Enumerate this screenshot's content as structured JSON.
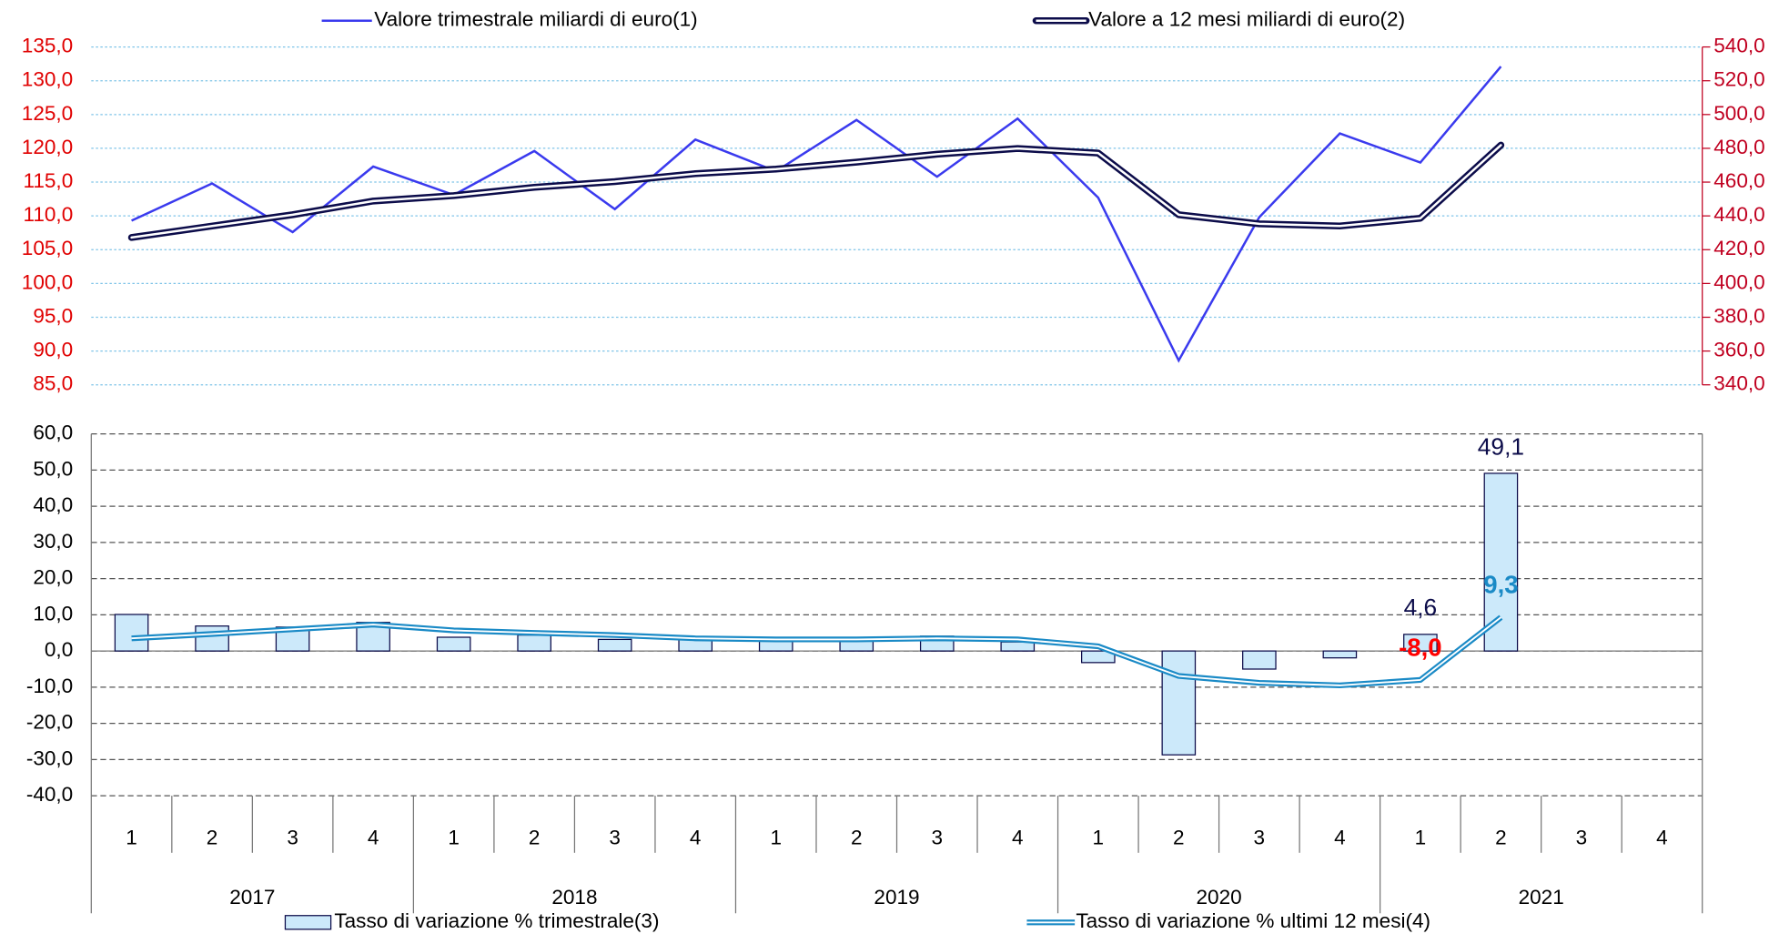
{
  "chart_data": [
    {
      "type": "line",
      "legend": "top",
      "grid": true,
      "series": [
        {
          "name": "Valore trimestrale miliardi di euro(1)",
          "color": "#3a3aee",
          "values": [
            109.3,
            114.8,
            107.6,
            117.3,
            113.1,
            119.6,
            111.0,
            121.3,
            116.6,
            124.2,
            115.8,
            124.4,
            112.7,
            88.6,
            109.8,
            122.2,
            117.9,
            132.1,
            null,
            null
          ]
        },
        {
          "name": "Valore a 12 mesi miliardi di euro(2)",
          "color": "#0c0c4a",
          "axis": "y2",
          "values": [
            427.2,
            434.0,
            440.7,
            448.8,
            452.0,
            456.9,
            460.3,
            465.0,
            467.7,
            471.8,
            476.5,
            479.9,
            477.2,
            440.7,
            435.3,
            434.0,
            438.6,
            481.9,
            null,
            null
          ]
        }
      ],
      "ylim": [
        85,
        135
      ],
      "yticks": [
        {
          "value": 85,
          "label": "85,0"
        },
        {
          "value": 90,
          "label": "90,0"
        },
        {
          "value": 95,
          "label": "95,0"
        },
        {
          "value": 100,
          "label": "100,0"
        },
        {
          "value": 105,
          "label": "105,0"
        },
        {
          "value": 110,
          "label": "110,0"
        },
        {
          "value": 115,
          "label": "115,0"
        },
        {
          "value": 120,
          "label": "120,0"
        },
        {
          "value": 125,
          "label": "125,0"
        },
        {
          "value": 130,
          "label": "130,0"
        },
        {
          "value": 135,
          "label": "135,0"
        }
      ],
      "y2lim": [
        340,
        540
      ],
      "y2ticks": [
        {
          "value": 340,
          "label": "340,0"
        },
        {
          "value": 360,
          "label": "360,0"
        },
        {
          "value": 380,
          "label": "380,0"
        },
        {
          "value": 400,
          "label": "400,0"
        },
        {
          "value": 420,
          "label": "420,0"
        },
        {
          "value": 440,
          "label": "440,0"
        },
        {
          "value": 460,
          "label": "460,0"
        },
        {
          "value": 480,
          "label": "480,0"
        },
        {
          "value": 500,
          "label": "500,0"
        },
        {
          "value": 520,
          "label": "520,0"
        },
        {
          "value": 540,
          "label": "540,0"
        }
      ]
    },
    {
      "type": "bar_line",
      "legend": "bottom",
      "grid": true,
      "categories": [
        "1",
        "2",
        "3",
        "4",
        "1",
        "2",
        "3",
        "4",
        "1",
        "2",
        "3",
        "4",
        "1",
        "2",
        "3",
        "4",
        "1",
        "2",
        "3",
        "4"
      ],
      "years": [
        "2017",
        "2018",
        "2019",
        "2020",
        "2021"
      ],
      "series": [
        {
          "name": "Tasso di variazione % trimestrale(3)",
          "type": "bar",
          "color": "#cce9fa",
          "edge_color": "#0c0c4a",
          "values": [
            10.1,
            6.9,
            6.6,
            7.9,
            3.8,
            4.4,
            3.2,
            3.5,
            2.8,
            3.5,
            4.1,
            2.5,
            -3.2,
            -28.7,
            -5.0,
            -1.9,
            4.6,
            49.1,
            null,
            null
          ],
          "value_labels": [
            null,
            null,
            null,
            null,
            null,
            null,
            null,
            null,
            null,
            null,
            null,
            null,
            null,
            null,
            null,
            null,
            "4,6",
            "49,1",
            null,
            null
          ]
        },
        {
          "name": "Tasso di variazione % ultimi 12 mesi(4)",
          "type": "line",
          "color": "#1a8ac6",
          "values": [
            3.5,
            4.7,
            6.0,
            7.3,
            5.7,
            5.0,
            4.4,
            3.5,
            3.2,
            3.2,
            3.5,
            3.2,
            1.3,
            -6.9,
            -8.8,
            -9.5,
            -8.0,
            9.3,
            null,
            null
          ],
          "value_labels": [
            null,
            null,
            null,
            null,
            null,
            null,
            null,
            null,
            null,
            null,
            null,
            null,
            null,
            null,
            null,
            null,
            "-8,0",
            "9,3",
            null,
            null
          ]
        }
      ],
      "ylim": [
        -40,
        60
      ],
      "yticks": [
        {
          "value": -40,
          "label": "-40,0"
        },
        {
          "value": -30,
          "label": "-30,0"
        },
        {
          "value": -20,
          "label": "-20,0"
        },
        {
          "value": -10,
          "label": "-10,0"
        },
        {
          "value": 0,
          "label": "0,0"
        },
        {
          "value": 10,
          "label": "10,0"
        },
        {
          "value": 20,
          "label": "20,0"
        },
        {
          "value": 30,
          "label": "30,0"
        },
        {
          "value": 40,
          "label": "40,0"
        },
        {
          "value": 50,
          "label": "50,0"
        },
        {
          "value": 60,
          "label": "60,0"
        }
      ]
    }
  ]
}
